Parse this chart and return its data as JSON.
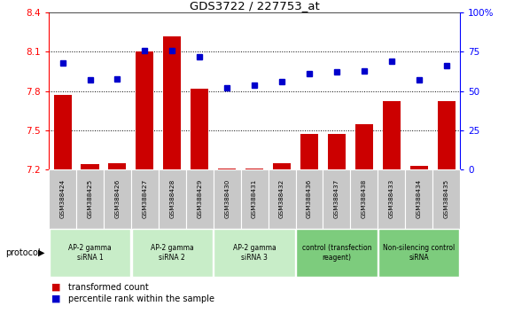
{
  "title": "GDS3722 / 227753_at",
  "samples": [
    "GSM388424",
    "GSM388425",
    "GSM388426",
    "GSM388427",
    "GSM388428",
    "GSM388429",
    "GSM388430",
    "GSM388431",
    "GSM388432",
    "GSM388436",
    "GSM388437",
    "GSM388438",
    "GSM388433",
    "GSM388434",
    "GSM388435"
  ],
  "bar_values": [
    7.77,
    7.24,
    7.25,
    8.1,
    8.22,
    7.82,
    7.21,
    7.21,
    7.25,
    7.47,
    7.47,
    7.55,
    7.72,
    7.23,
    7.72
  ],
  "dot_values": [
    68,
    57,
    58,
    76,
    76,
    72,
    52,
    54,
    56,
    61,
    62,
    63,
    69,
    57,
    66
  ],
  "bar_color": "#cc0000",
  "dot_color": "#0000cc",
  "ymin": 7.2,
  "ymax": 8.4,
  "y2min": 0,
  "y2max": 100,
  "yticks": [
    7.2,
    7.5,
    7.8,
    8.1,
    8.4
  ],
  "y2ticks": [
    0,
    25,
    50,
    75,
    100
  ],
  "groups": [
    {
      "label": "AP-2 gamma\nsiRNA 1",
      "indices": [
        0,
        1,
        2
      ],
      "color": "#c8edc8"
    },
    {
      "label": "AP-2 gamma\nsiRNA 2",
      "indices": [
        3,
        4,
        5
      ],
      "color": "#c8edc8"
    },
    {
      "label": "AP-2 gamma\nsiRNA 3",
      "indices": [
        6,
        7,
        8
      ],
      "color": "#c8edc8"
    },
    {
      "label": "control (transfection\nreagent)",
      "indices": [
        9,
        10,
        11
      ],
      "color": "#7dcc7d"
    },
    {
      "label": "Non-silencing control\nsiRNA",
      "indices": [
        12,
        13,
        14
      ],
      "color": "#7dcc7d"
    }
  ],
  "protocol_label": "protocol",
  "legend_bar": "transformed count",
  "legend_dot": "percentile rank within the sample",
  "sample_bg": "#c8c8c8"
}
